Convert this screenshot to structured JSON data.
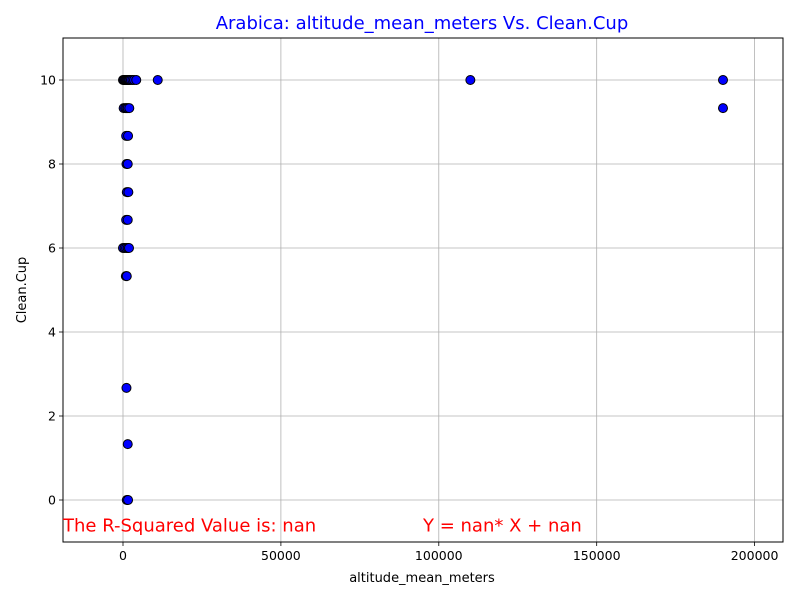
{
  "chart_data": {
    "type": "scatter",
    "title": "Arabica: altitude_mean_meters Vs. Clean.Cup",
    "xlabel": "altitude_mean_meters",
    "ylabel": "Clean.Cup",
    "xlim": [
      -19000,
      209000
    ],
    "ylim": [
      -1,
      11
    ],
    "xticks": [
      0,
      50000,
      100000,
      150000,
      200000
    ],
    "yticks": [
      0,
      2,
      4,
      6,
      8,
      10
    ],
    "xtick_labels": [
      "0",
      "50000",
      "100000",
      "150000",
      "200000"
    ],
    "ytick_labels": [
      "0",
      "2",
      "4",
      "6",
      "8",
      "10"
    ],
    "grid": true,
    "colors": {
      "title": "#0000ff",
      "marker_fill": "#0000ff",
      "marker_edge": "#000000",
      "annotation": "#ff0000",
      "grid": "#b0b0b0"
    },
    "points": [
      {
        "x": 0,
        "y": 10
      },
      {
        "x": 300,
        "y": 10
      },
      {
        "x": 600,
        "y": 10
      },
      {
        "x": 900,
        "y": 10
      },
      {
        "x": 1200,
        "y": 10
      },
      {
        "x": 1500,
        "y": 10
      },
      {
        "x": 1800,
        "y": 10
      },
      {
        "x": 2100,
        "y": 10
      },
      {
        "x": 2500,
        "y": 10
      },
      {
        "x": 3000,
        "y": 10
      },
      {
        "x": 3500,
        "y": 10
      },
      {
        "x": 4200,
        "y": 10
      },
      {
        "x": 11000,
        "y": 10
      },
      {
        "x": 110000,
        "y": 10
      },
      {
        "x": 190000,
        "y": 10
      },
      {
        "x": 200,
        "y": 9.33
      },
      {
        "x": 700,
        "y": 9.33
      },
      {
        "x": 1100,
        "y": 9.33
      },
      {
        "x": 1500,
        "y": 9.33
      },
      {
        "x": 2000,
        "y": 9.33
      },
      {
        "x": 190000,
        "y": 9.33
      },
      {
        "x": 1000,
        "y": 8.67
      },
      {
        "x": 1600,
        "y": 8.67
      },
      {
        "x": 1100,
        "y": 8
      },
      {
        "x": 1500,
        "y": 8
      },
      {
        "x": 1200,
        "y": 7.33
      },
      {
        "x": 1700,
        "y": 7.33
      },
      {
        "x": 1000,
        "y": 6.67
      },
      {
        "x": 1500,
        "y": 6.67
      },
      {
        "x": 0,
        "y": 6
      },
      {
        "x": 500,
        "y": 6
      },
      {
        "x": 1000,
        "y": 6
      },
      {
        "x": 1500,
        "y": 6
      },
      {
        "x": 1900,
        "y": 6
      },
      {
        "x": 900,
        "y": 5.33
      },
      {
        "x": 1200,
        "y": 5.33
      },
      {
        "x": 1100,
        "y": 2.67
      },
      {
        "x": 1500,
        "y": 1.33
      },
      {
        "x": 1200,
        "y": 0
      },
      {
        "x": 1600,
        "y": 0
      }
    ],
    "annotations": [
      {
        "text": "The R-Squared Value is: nan",
        "x": -19000,
        "y": -0.75
      },
      {
        "text": "Y = nan* X + nan",
        "x": 95000,
        "y": -0.75
      }
    ]
  }
}
